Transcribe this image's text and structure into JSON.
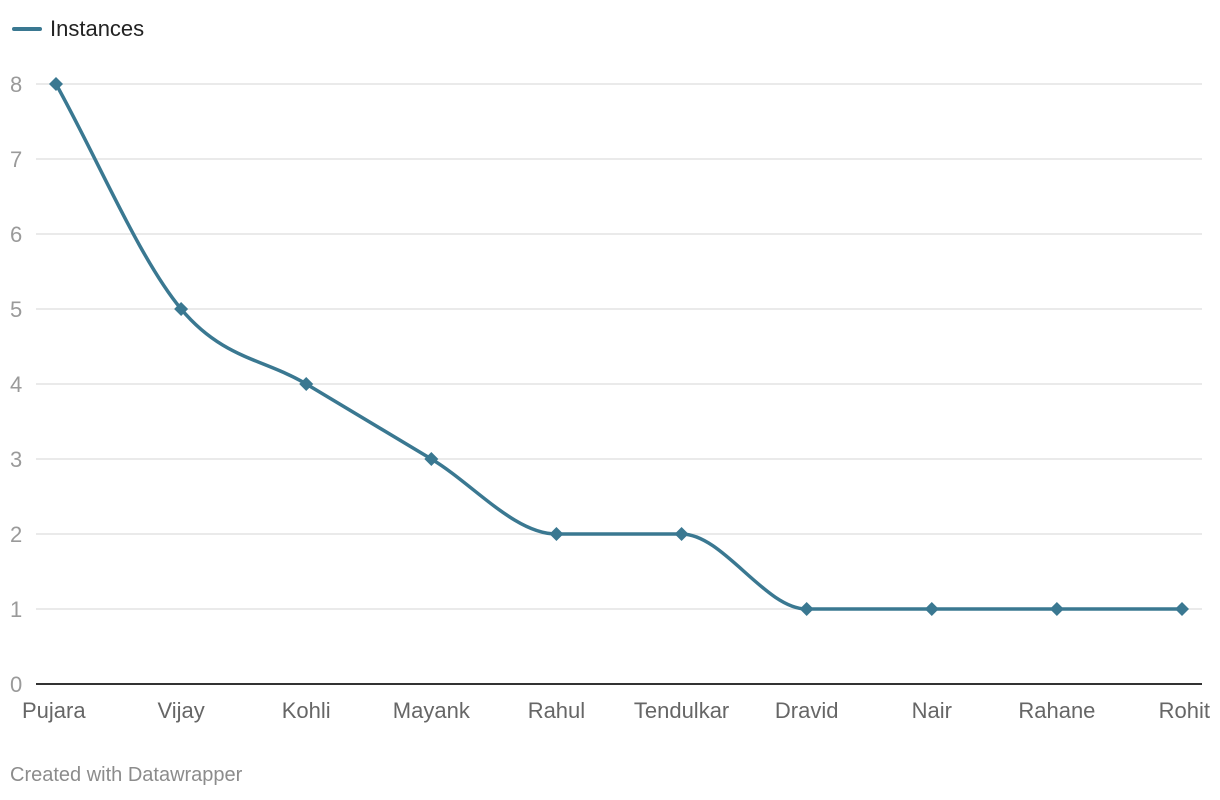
{
  "legend": {
    "label": "Instances"
  },
  "footer": {
    "text": "Created with Datawrapper"
  },
  "colors": {
    "series": "#3a7891",
    "grid": "#e3e3e3",
    "axis": "#333333"
  },
  "chart_data": {
    "type": "line",
    "categories": [
      "Pujara",
      "Vijay",
      "Kohli",
      "Mayank",
      "Rahul",
      "Tendulkar",
      "Dravid",
      "Nair",
      "Rahane",
      "Rohit"
    ],
    "series": [
      {
        "name": "Instances",
        "values": [
          8,
          5,
          4,
          3,
          2,
          2,
          1,
          1,
          1,
          1
        ]
      }
    ],
    "yticks": [
      0,
      1,
      2,
      3,
      4,
      5,
      6,
      7,
      8
    ],
    "ylim": [
      0,
      8
    ],
    "grid": true,
    "markers": "diamond",
    "curve": "smooth",
    "legend_position": "top-left"
  }
}
